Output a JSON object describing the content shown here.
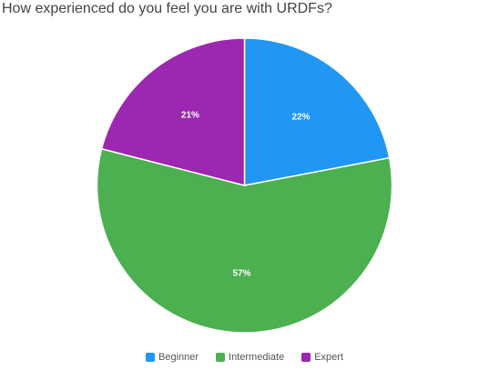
{
  "chart_data": {
    "type": "pie",
    "title": "How experienced do you feel you are with URDFs?",
    "slices": [
      {
        "label": "Beginner",
        "value": 22,
        "display": "22%",
        "color": "#2196f3"
      },
      {
        "label": "Intermediate",
        "value": 57,
        "display": "57%",
        "color": "#4caf50"
      },
      {
        "label": "Expert",
        "value": 21,
        "display": "21%",
        "color": "#9c27b0"
      }
    ],
    "legend_position": "bottom"
  },
  "legend": {
    "items": [
      {
        "label": "Beginner",
        "color": "#2196f3"
      },
      {
        "label": "Intermediate",
        "color": "#4caf50"
      },
      {
        "label": "Expert",
        "color": "#9c27b0"
      }
    ]
  }
}
